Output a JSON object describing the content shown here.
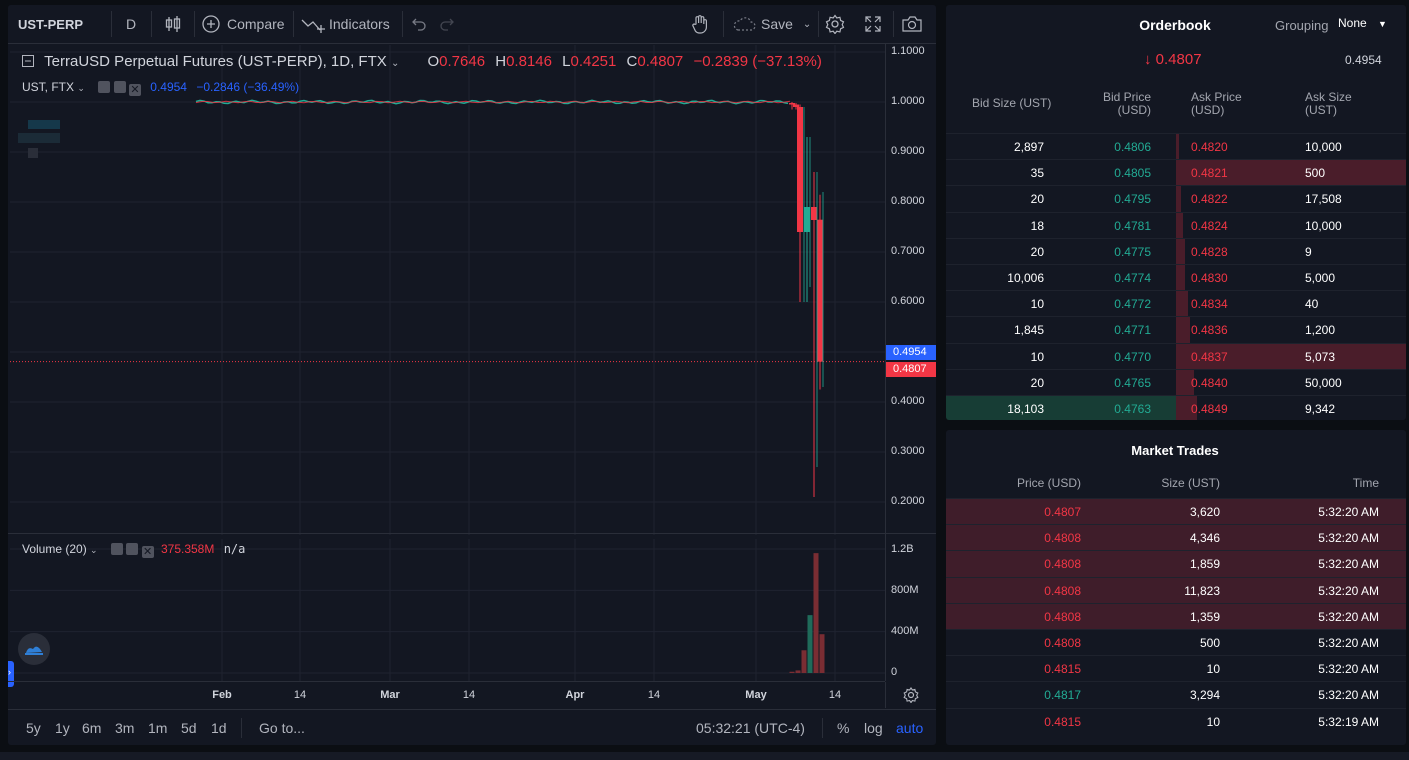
{
  "toolbar": {
    "symbol": "UST-PERP",
    "interval": "D",
    "compare_label": "Compare",
    "indicators_label": "Indicators",
    "save_label": "Save"
  },
  "legend": {
    "title": "TerraUSD Perpetual Futures (UST-PERP), 1D, FTX",
    "o_label": "O",
    "o_value": "0.7646",
    "h_label": "H",
    "h_value": "0.8146",
    "l_label": "L",
    "l_value": "0.4251",
    "c_label": "C",
    "c_value": "0.4807",
    "change": "−0.2839 (−37.13%)",
    "compare_symbol": "UST, FTX",
    "compare_value": "0.4954",
    "compare_change": "−0.2846 (−36.49%)"
  },
  "volume_legend": {
    "label": "Volume (20)",
    "value": "375.358M",
    "ma": "n/a"
  },
  "price_scale": {
    "ticks": [
      "1.1000",
      "1.0000",
      "0.9000",
      "0.8000",
      "0.7000",
      "0.6000",
      "0.4000",
      "0.3000",
      "0.2000"
    ],
    "label_blue": "0.4954",
    "label_red": "0.4807"
  },
  "volume_scale": {
    "ticks": [
      "1.2B",
      "800M",
      "400M",
      "0"
    ]
  },
  "time_scale": {
    "ticks": [
      "Feb",
      "14",
      "Mar",
      "14",
      "Apr",
      "14",
      "May",
      "14"
    ]
  },
  "bottom_bar": {
    "ranges": [
      "5y",
      "1y",
      "6m",
      "3m",
      "1m",
      "5d",
      "1d"
    ],
    "goto_label": "Go to...",
    "clock": "05:32:21 (UTC-4)",
    "percent_label": "%",
    "log_label": "log",
    "auto_label": "auto"
  },
  "colors": {
    "up": "#22ab94",
    "down": "#f23645",
    "accent": "#2962ff",
    "bg": "#131722"
  },
  "orderbook": {
    "title": "Orderbook",
    "grouping_label": "Grouping",
    "grouping_value": "None",
    "last_price": "0.4807",
    "mark_price": "0.4954",
    "headers": {
      "bid_size": "Bid Size (UST)",
      "bid_price": "Bid Price (USD)",
      "ask_price": "Ask Price (USD)",
      "ask_size": "Ask Size (UST)"
    },
    "rows": [
      {
        "bid_size": "2,897",
        "bid_price": "0.4806",
        "ask_price": "0.4820",
        "ask_size": "10,000",
        "bid_depth": 0.0,
        "ask_depth": 0.0
      },
      {
        "bid_size": "35",
        "bid_price": "0.4805",
        "ask_price": "0.4821",
        "ask_size": "500",
        "bid_depth": 0.0,
        "ask_depth": 1.0
      },
      {
        "bid_size": "20",
        "bid_price": "0.4795",
        "ask_price": "0.4822",
        "ask_size": "17,508",
        "bid_depth": 0.0,
        "ask_depth": 0.02
      },
      {
        "bid_size": "18",
        "bid_price": "0.4781",
        "ask_price": "0.4824",
        "ask_size": "10,000",
        "bid_depth": 0.0,
        "ask_depth": 0.03
      },
      {
        "bid_size": "20",
        "bid_price": "0.4775",
        "ask_price": "0.4828",
        "ask_size": "9",
        "bid_depth": 0.0,
        "ask_depth": 0.04
      },
      {
        "bid_size": "10,006",
        "bid_price": "0.4774",
        "ask_price": "0.4830",
        "ask_size": "5,000",
        "bid_depth": 0.0,
        "ask_depth": 0.04
      },
      {
        "bid_size": "10",
        "bid_price": "0.4772",
        "ask_price": "0.4834",
        "ask_size": "40",
        "bid_depth": 0.0,
        "ask_depth": 0.05
      },
      {
        "bid_size": "1,845",
        "bid_price": "0.4771",
        "ask_price": "0.4836",
        "ask_size": "1,200",
        "bid_depth": 0.0,
        "ask_depth": 0.06
      },
      {
        "bid_size": "10",
        "bid_price": "0.4770",
        "ask_price": "0.4837",
        "ask_size": "5,073",
        "bid_depth": 0.0,
        "ask_depth": 1.0
      },
      {
        "bid_size": "20",
        "bid_price": "0.4765",
        "ask_price": "0.4840",
        "ask_size": "50,000",
        "bid_depth": 0.0,
        "ask_depth": 0.08
      },
      {
        "bid_size": "18,103",
        "bid_price": "0.4763",
        "ask_price": "0.4849",
        "ask_size": "9,342",
        "bid_depth": 1.0,
        "ask_depth": 0.09
      }
    ]
  },
  "market_trades": {
    "title": "Market Trades",
    "headers": {
      "price": "Price (USD)",
      "size": "Size (UST)",
      "time": "Time"
    },
    "rows": [
      {
        "price": "0.4807",
        "size": "3,620",
        "time": "5:32:20 AM",
        "side": "sell",
        "highlight": true
      },
      {
        "price": "0.4808",
        "size": "4,346",
        "time": "5:32:20 AM",
        "side": "sell",
        "highlight": true
      },
      {
        "price": "0.4808",
        "size": "1,859",
        "time": "5:32:20 AM",
        "side": "sell",
        "highlight": true
      },
      {
        "price": "0.4808",
        "size": "11,823",
        "time": "5:32:20 AM",
        "side": "sell",
        "highlight": true
      },
      {
        "price": "0.4808",
        "size": "1,359",
        "time": "5:32:20 AM",
        "side": "sell",
        "highlight": true
      },
      {
        "price": "0.4808",
        "size": "500",
        "time": "5:32:20 AM",
        "side": "sell",
        "highlight": false
      },
      {
        "price": "0.4815",
        "size": "10",
        "time": "5:32:20 AM",
        "side": "sell",
        "highlight": false
      },
      {
        "price": "0.4817",
        "size": "3,294",
        "time": "5:32:20 AM",
        "side": "buy",
        "highlight": false
      },
      {
        "price": "0.4815",
        "size": "10",
        "time": "5:32:19 AM",
        "side": "sell",
        "highlight": false
      }
    ]
  },
  "chart_data": {
    "type": "candlestick",
    "title": "TerraUSD Perpetual Futures (UST-PERP), 1D, FTX",
    "ylim": [
      0.15,
      1.12
    ],
    "candles": [
      {
        "date": "May 7",
        "open": 0.998,
        "high": 1.0,
        "low": 0.985,
        "close": 0.995
      },
      {
        "date": "May 8",
        "open": 0.995,
        "high": 0.998,
        "low": 0.985,
        "close": 0.99
      },
      {
        "date": "May 9",
        "open": 0.99,
        "high": 0.995,
        "low": 0.6,
        "close": 0.74
      },
      {
        "date": "May 10",
        "open": 0.74,
        "high": 0.93,
        "low": 0.6,
        "close": 0.79
      },
      {
        "date": "May 11",
        "open": 0.79,
        "high": 0.86,
        "low": 0.21,
        "close": 0.764
      },
      {
        "date": "May 12",
        "open": 0.7646,
        "high": 0.8146,
        "low": 0.4251,
        "close": 0.4807
      }
    ],
    "compare_line": {
      "name": "UST, FTX",
      "start": "Jan 27",
      "level": 1.0,
      "last": 0.4954
    },
    "volume": {
      "ticks": [
        "1.2B",
        "800M",
        "400M",
        "0"
      ],
      "bars": [
        {
          "date": "May 7",
          "value": 12000000,
          "dir": "down"
        },
        {
          "date": "May 8",
          "value": 25000000,
          "dir": "down"
        },
        {
          "date": "May 9",
          "value": 220000000,
          "dir": "down"
        },
        {
          "date": "May 10",
          "value": 560000000,
          "dir": "up"
        },
        {
          "date": "May 11",
          "value": 1160000000,
          "dir": "down"
        },
        {
          "date": "May 12",
          "value": 375358000,
          "dir": "down"
        }
      ]
    }
  }
}
